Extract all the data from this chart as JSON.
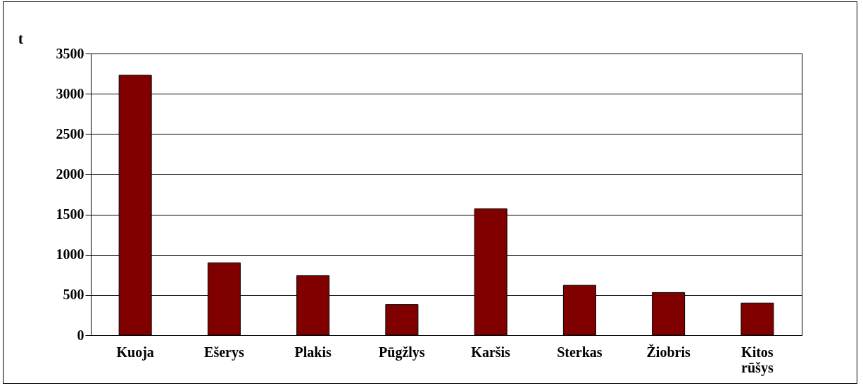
{
  "chart_data": {
    "type": "bar",
    "ylabel": "t",
    "categories": [
      "Kuoja",
      "Ešerys",
      "Plakis",
      "Pūgžlys",
      "Karšis",
      "Sterkas",
      "Žiobris",
      "Kitos rūšys"
    ],
    "values": [
      3230,
      900,
      740,
      380,
      1570,
      620,
      530,
      400
    ],
    "color": "#800000",
    "ylim": [
      0,
      3500
    ],
    "yticks": [
      0,
      500,
      1000,
      1500,
      2000,
      2500,
      3000,
      3500
    ],
    "grid": "y"
  }
}
